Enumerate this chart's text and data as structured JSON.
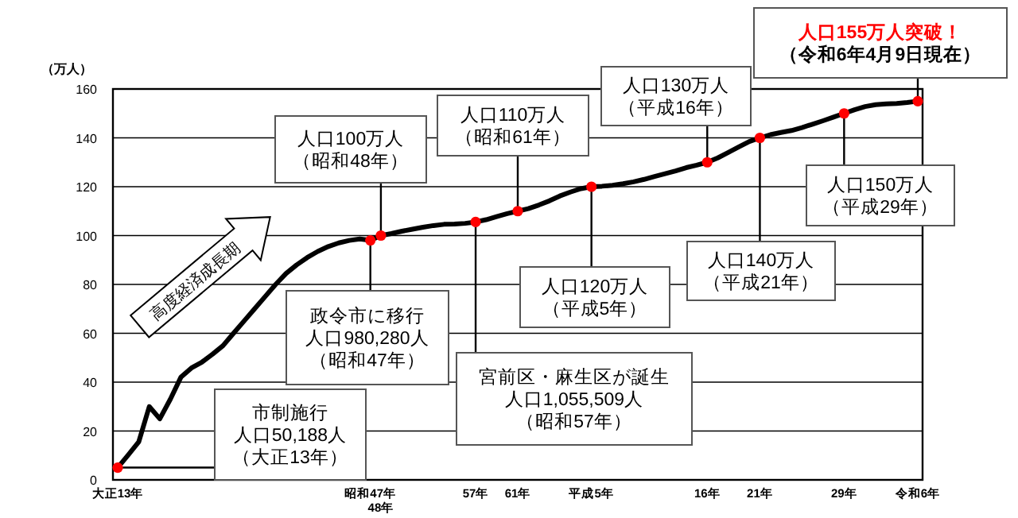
{
  "chart_data": {
    "type": "line",
    "ylabel": "（万人）",
    "ylim": [
      0,
      160
    ],
    "yticks": [
      0,
      20,
      40,
      60,
      80,
      100,
      120,
      140,
      160
    ],
    "grid": "y",
    "categories": [
      "大正13年",
      null,
      null,
      null,
      null,
      null,
      null,
      null,
      null,
      null,
      null,
      null,
      null,
      null,
      null,
      null,
      null,
      null,
      null,
      null,
      null,
      null,
      null,
      null,
      "昭和47年",
      "48年",
      null,
      null,
      null,
      null,
      null,
      null,
      null,
      null,
      "57年",
      null,
      null,
      null,
      "61年",
      null,
      null,
      null,
      null,
      null,
      null,
      "平成5年",
      null,
      null,
      null,
      null,
      null,
      null,
      null,
      null,
      null,
      null,
      "16年",
      null,
      null,
      null,
      null,
      "21年",
      null,
      null,
      null,
      null,
      null,
      null,
      null,
      "29年",
      null,
      null,
      null,
      null,
      null,
      null,
      "令和6年"
    ],
    "series": [
      {
        "color": "#000000",
        "values": [
          5.0188,
          10.2,
          15.6,
          30,
          25,
          33,
          42,
          45.8,
          48.2,
          51.4,
          54.9,
          60,
          65,
          70,
          75,
          80,
          84.5,
          88,
          91,
          93.5,
          95.5,
          97,
          98,
          98.6,
          98.028,
          100,
          100.8,
          101.8,
          102.6,
          103.4,
          104.1,
          104.6,
          104.7,
          105,
          105.5509,
          106.5,
          107.8,
          109,
          110,
          111,
          112.5,
          114.2,
          116.2,
          117.8,
          119.2,
          120,
          120.2,
          120.6,
          121.2,
          122,
          123,
          124.2,
          125.3,
          126.5,
          127.8,
          128.8,
          130,
          131.8,
          134,
          136.3,
          138.5,
          140,
          141.3,
          142.2,
          143,
          144.2,
          145.6,
          147,
          148.5,
          150,
          151.5,
          152.8,
          153.6,
          153.9,
          154.1,
          154.5,
          155
        ]
      },
      {
        "type": "scatter",
        "color": "#ff0000",
        "marker": "circle",
        "x": [
          "大正13年",
          "昭和47年",
          "48年",
          "57年",
          "61年",
          "平成5年",
          "16年",
          "21年",
          "29年",
          "令和6年"
        ],
        "values": [
          5.0188,
          98.028,
          100,
          105.5509,
          110,
          120,
          130,
          140,
          150,
          155
        ]
      }
    ],
    "annotations": [
      {
        "text": "市制施行人口50,188人（大正13年）",
        "x": "大正13年",
        "y": 5.0188
      },
      {
        "text": "政令市に移行人口980,280人（昭和47年）",
        "x": "昭和47年",
        "y": 98.028
      },
      {
        "text": "人口100万人（昭和48年）",
        "x": "48年",
        "y": 100
      },
      {
        "text": "宮前区・麻生区が誕生人口1,055,509人（昭和57年）",
        "x": "57年",
        "y": 105.5509
      },
      {
        "text": "人口110万人（昭和61年）",
        "x": "61年",
        "y": 110
      },
      {
        "text": "人口120万人（平成5年）",
        "x": "平成5年",
        "y": 120
      },
      {
        "text": "人口130万人（平成16年）",
        "x": "16年",
        "y": 130
      },
      {
        "text": "人口140万人（平成21年）",
        "x": "21年",
        "y": 140
      },
      {
        "text": "人口150万人（平成29年）",
        "x": "29年",
        "y": 150
      },
      {
        "text": "人口155万人突破！（令和6年4月9日現在）",
        "x": "令和6年",
        "y": 155
      },
      "高度経済成長期"
    ]
  }
}
